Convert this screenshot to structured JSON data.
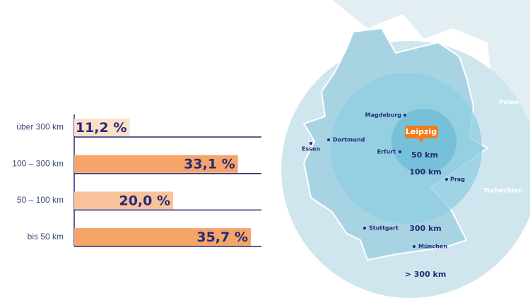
{
  "chart_data": {
    "type": "bar",
    "orientation": "horizontal",
    "categories": [
      "über 300 km",
      "100 – 300 km",
      "50 – 100 km",
      "bis 50 km"
    ],
    "values": [
      11.2,
      33.1,
      20.0,
      35.7
    ],
    "value_labels": [
      "11,2 %",
      "33,1 %",
      "20,0 %",
      "35,7 %"
    ],
    "colors": [
      "#fbe0c8",
      "#f5a46a",
      "#f8c29a",
      "#f5a46a"
    ]
  },
  "map": {
    "countries": [
      "Polen",
      "Tschechien"
    ],
    "cities": [
      "Magdeburg",
      "Dortmund",
      "Essen",
      "Erfurt",
      "Prag",
      "Stuttgart",
      "München"
    ],
    "highlight": "Leipzig",
    "rings": [
      "50 km",
      "100 km",
      "300 km",
      "> 300 km"
    ]
  }
}
